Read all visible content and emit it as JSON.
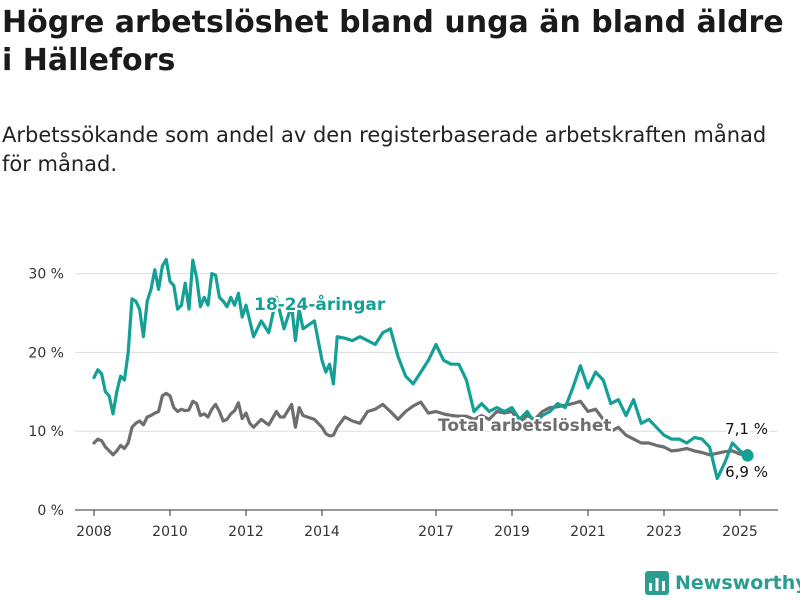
{
  "title": "Högre arbetslöshet bland unga än bland äldre i Hällefors",
  "subtitle": "Arbetssökande som andel av den registerbaserade arbetskraften månad för månad.",
  "brand": "Newsworthy",
  "colors": {
    "youth": "#14a096",
    "total": "#6e6e6e",
    "grid": "#dddddd",
    "axis": "#333333",
    "brand": "#2a9d90"
  },
  "chart_data": {
    "type": "line",
    "x_axis": {
      "min": 2007.5,
      "max": 2026,
      "ticks": [
        2008,
        2010,
        2012,
        2014,
        2017,
        2019,
        2021,
        2023,
        2025
      ]
    },
    "y_axis": {
      "min": 0,
      "max": 33,
      "ticks": [
        0,
        10,
        20,
        30
      ],
      "tick_labels": [
        "0 %",
        "10 %",
        "20 %",
        "30 %"
      ]
    },
    "grid": "horizontal",
    "series": [
      {
        "name": "18-24-åringar",
        "color_key": "youth",
        "end_label": "6,9 %",
        "x": [
          2008.0,
          2008.1,
          2008.2,
          2008.3,
          2008.4,
          2008.5,
          2008.6,
          2008.7,
          2008.8,
          2008.9,
          2009.0,
          2009.1,
          2009.2,
          2009.3,
          2009.4,
          2009.5,
          2009.6,
          2009.7,
          2009.8,
          2009.9,
          2010.0,
          2010.1,
          2010.2,
          2010.3,
          2010.4,
          2010.5,
          2010.6,
          2010.7,
          2010.8,
          2010.9,
          2011.0,
          2011.1,
          2011.2,
          2011.3,
          2011.4,
          2011.5,
          2011.6,
          2011.7,
          2011.8,
          2011.9,
          2012.0,
          2012.1,
          2012.2,
          2012.4,
          2012.6,
          2012.8,
          2012.9,
          2013.0,
          2013.2,
          2013.3,
          2013.4,
          2013.5,
          2013.8,
          2014.0,
          2014.1,
          2014.2,
          2014.3,
          2014.4,
          2014.6,
          2014.8,
          2015.0,
          2015.2,
          2015.4,
          2015.6,
          2015.8,
          2016.0,
          2016.2,
          2016.4,
          2016.6,
          2016.8,
          2017.0,
          2017.2,
          2017.4,
          2017.6,
          2017.8,
          2018.0,
          2018.2,
          2018.4,
          2018.6,
          2018.8,
          2019.0,
          2019.2,
          2019.4,
          2019.6,
          2019.8,
          2020.0,
          2020.2,
          2020.4,
          2020.6,
          2020.8,
          2021.0,
          2021.2,
          2021.4,
          2021.6,
          2021.8,
          2022.0,
          2022.2,
          2022.4,
          2022.6,
          2022.8,
          2023.0,
          2023.2,
          2023.4,
          2023.6,
          2023.8,
          2024.0,
          2024.2,
          2024.4,
          2024.6,
          2024.8,
          2025.0,
          2025.2
        ],
        "y": [
          16.8,
          17.8,
          17.3,
          15.0,
          14.5,
          12.2,
          15.0,
          17.0,
          16.5,
          20.0,
          26.8,
          26.5,
          25.5,
          22.0,
          26.5,
          28.0,
          30.5,
          28.0,
          31.0,
          31.8,
          29.0,
          28.5,
          25.5,
          26.0,
          28.8,
          25.5,
          31.7,
          29.5,
          25.8,
          27.0,
          26.0,
          30.0,
          29.8,
          27.0,
          26.5,
          25.8,
          27.0,
          26.0,
          27.5,
          24.5,
          26.0,
          24.0,
          22.0,
          24.0,
          22.5,
          27.0,
          25.0,
          23.0,
          26.0,
          21.5,
          25.5,
          23.0,
          24.0,
          19.0,
          17.5,
          18.5,
          16.0,
          22.0,
          21.8,
          21.5,
          22.0,
          21.5,
          21.0,
          22.5,
          23.0,
          19.5,
          17.0,
          16.0,
          17.5,
          19.0,
          21.0,
          19.0,
          18.5,
          18.5,
          16.5,
          12.5,
          13.5,
          12.5,
          13.0,
          12.5,
          13.0,
          11.5,
          12.5,
          11.0,
          12.0,
          12.5,
          13.5,
          13.0,
          15.5,
          18.3,
          15.5,
          17.5,
          16.5,
          13.5,
          14.0,
          12.0,
          14.0,
          11.0,
          11.5,
          10.5,
          9.5,
          9.0,
          9.0,
          8.5,
          9.2,
          9.0,
          8.0,
          4.0,
          6.0,
          8.5,
          7.5,
          6.9
        ]
      },
      {
        "name": "Total arbetslöshet",
        "color_key": "total",
        "end_label": "7,1 %",
        "x": [
          2008.0,
          2008.1,
          2008.2,
          2008.3,
          2008.4,
          2008.5,
          2008.6,
          2008.7,
          2008.8,
          2008.9,
          2009.0,
          2009.1,
          2009.2,
          2009.3,
          2009.4,
          2009.5,
          2009.6,
          2009.7,
          2009.8,
          2009.9,
          2010.0,
          2010.1,
          2010.2,
          2010.3,
          2010.4,
          2010.5,
          2010.6,
          2010.7,
          2010.8,
          2010.9,
          2011.0,
          2011.1,
          2011.2,
          2011.3,
          2011.4,
          2011.5,
          2011.6,
          2011.7,
          2011.8,
          2011.9,
          2012.0,
          2012.1,
          2012.2,
          2012.4,
          2012.6,
          2012.8,
          2012.9,
          2013.0,
          2013.2,
          2013.3,
          2013.4,
          2013.5,
          2013.8,
          2014.0,
          2014.1,
          2014.2,
          2014.3,
          2014.4,
          2014.6,
          2014.8,
          2015.0,
          2015.2,
          2015.4,
          2015.6,
          2015.8,
          2016.0,
          2016.2,
          2016.4,
          2016.6,
          2016.8,
          2017.0,
          2017.2,
          2017.4,
          2017.6,
          2017.8,
          2018.0,
          2018.2,
          2018.4,
          2018.6,
          2018.8,
          2019.0,
          2019.2,
          2019.4,
          2019.6,
          2019.8,
          2020.0,
          2020.2,
          2020.4,
          2020.6,
          2020.8,
          2021.0,
          2021.2,
          2021.4,
          2021.6,
          2021.8,
          2022.0,
          2022.2,
          2022.4,
          2022.6,
          2022.8,
          2023.0,
          2023.2,
          2023.4,
          2023.6,
          2023.8,
          2024.0,
          2024.2,
          2024.4,
          2024.6,
          2024.8,
          2025.0,
          2025.2
        ],
        "y": [
          8.5,
          9.0,
          8.8,
          8.0,
          7.5,
          7.0,
          7.5,
          8.2,
          7.8,
          8.5,
          10.5,
          11.0,
          11.3,
          10.8,
          11.8,
          12.0,
          12.3,
          12.5,
          14.5,
          14.8,
          14.5,
          13.0,
          12.5,
          12.8,
          12.6,
          12.7,
          13.8,
          13.5,
          12.0,
          12.2,
          11.8,
          12.8,
          13.4,
          12.5,
          11.3,
          11.5,
          12.2,
          12.6,
          13.6,
          11.6,
          12.3,
          11.0,
          10.5,
          11.5,
          10.8,
          12.5,
          11.8,
          11.8,
          13.4,
          10.5,
          13.0,
          12.0,
          11.5,
          10.5,
          9.7,
          9.4,
          9.5,
          10.5,
          11.8,
          11.3,
          11.0,
          12.5,
          12.8,
          13.4,
          12.5,
          11.5,
          12.5,
          13.2,
          13.7,
          12.3,
          12.5,
          12.2,
          12.0,
          11.9,
          11.9,
          11.5,
          12.0,
          11.5,
          12.5,
          12.3,
          12.5,
          11.0,
          12.0,
          11.5,
          12.5,
          13.0,
          13.1,
          13.3,
          13.5,
          13.8,
          12.5,
          12.8,
          11.5,
          10.0,
          10.5,
          9.5,
          9.0,
          8.5,
          8.5,
          8.2,
          8.0,
          7.5,
          7.6,
          7.8,
          7.5,
          7.3,
          7.0,
          7.2,
          7.4,
          7.5,
          7.1,
          7.1
        ]
      }
    ]
  }
}
